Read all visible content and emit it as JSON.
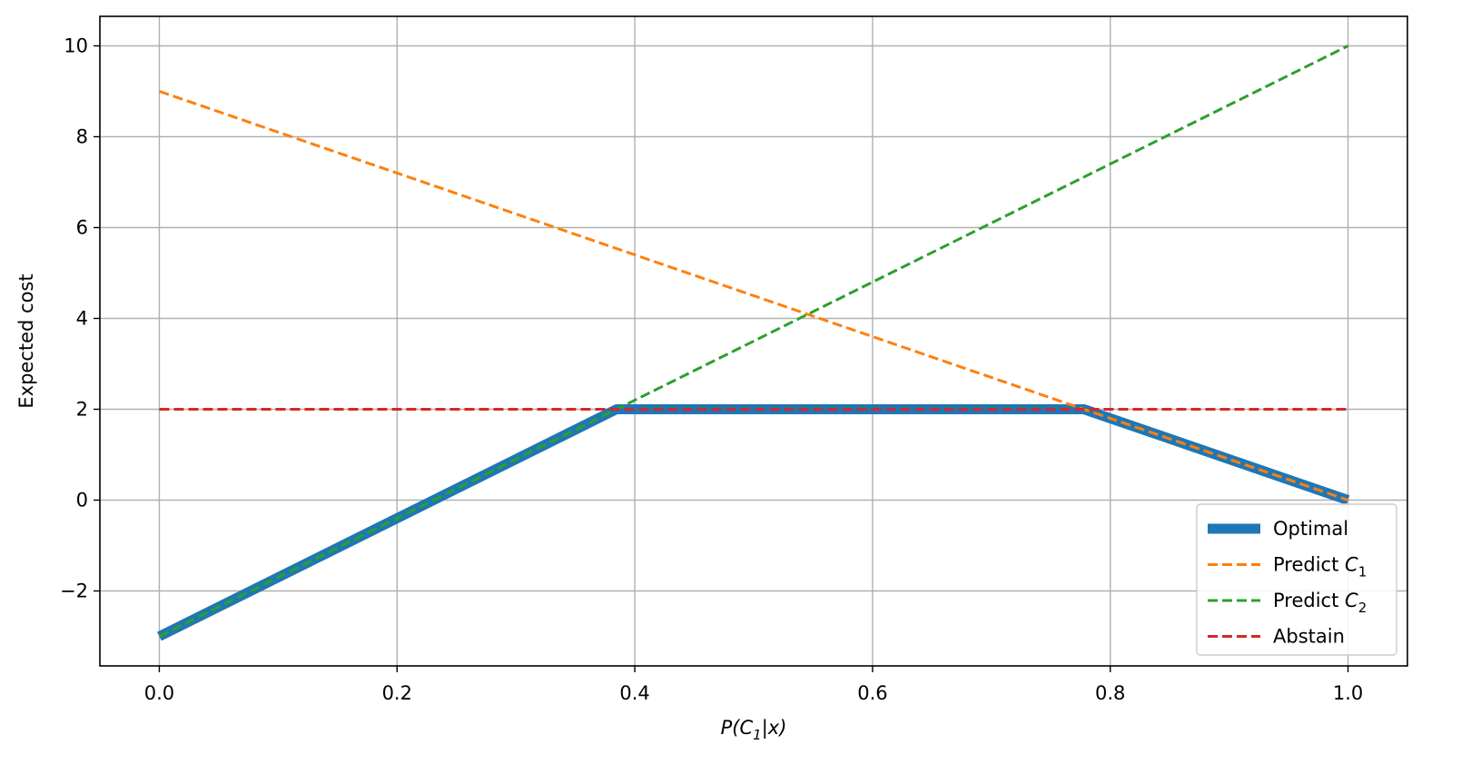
{
  "chart_data": {
    "type": "line",
    "xlabel": "P(C",
    "xlabel_sub": "1",
    "xlabel_tail": "|x)",
    "ylabel": "Expected cost",
    "xlim": [
      -0.05,
      1.05
    ],
    "ylim": [
      -3.65,
      10.65
    ],
    "xticks": [
      0.0,
      0.2,
      0.4,
      0.6,
      0.8,
      1.0
    ],
    "xtick_labels": [
      "0.0",
      "0.2",
      "0.4",
      "0.6",
      "0.8",
      "1.0"
    ],
    "yticks": [
      -2,
      0,
      2,
      4,
      6,
      8,
      10
    ],
    "ytick_labels": [
      "−2",
      "0",
      "2",
      "4",
      "6",
      "8",
      "10"
    ],
    "grid": true,
    "legend_position": "lower-right",
    "series": [
      {
        "name": "Optimal",
        "name_sub": "",
        "color": "#1f77b4",
        "style": "solid-thick",
        "x": [
          0.0,
          0.3846,
          0.7778,
          1.0
        ],
        "y": [
          -3.0,
          2.0,
          2.0,
          0.0
        ]
      },
      {
        "name": "Predict C",
        "name_sub": "1",
        "color": "#ff7f0e",
        "style": "dashed",
        "x": [
          0.0,
          1.0
        ],
        "y": [
          9.0,
          0.0
        ]
      },
      {
        "name": "Predict C",
        "name_sub": "2",
        "color": "#2ca02c",
        "style": "dashed",
        "x": [
          0.0,
          1.0
        ],
        "y": [
          -3.0,
          10.0
        ]
      },
      {
        "name": "Abstain",
        "name_sub": "",
        "color": "#d62728",
        "style": "dashed",
        "x": [
          0.0,
          1.0
        ],
        "y": [
          2.0,
          2.0
        ]
      }
    ]
  }
}
